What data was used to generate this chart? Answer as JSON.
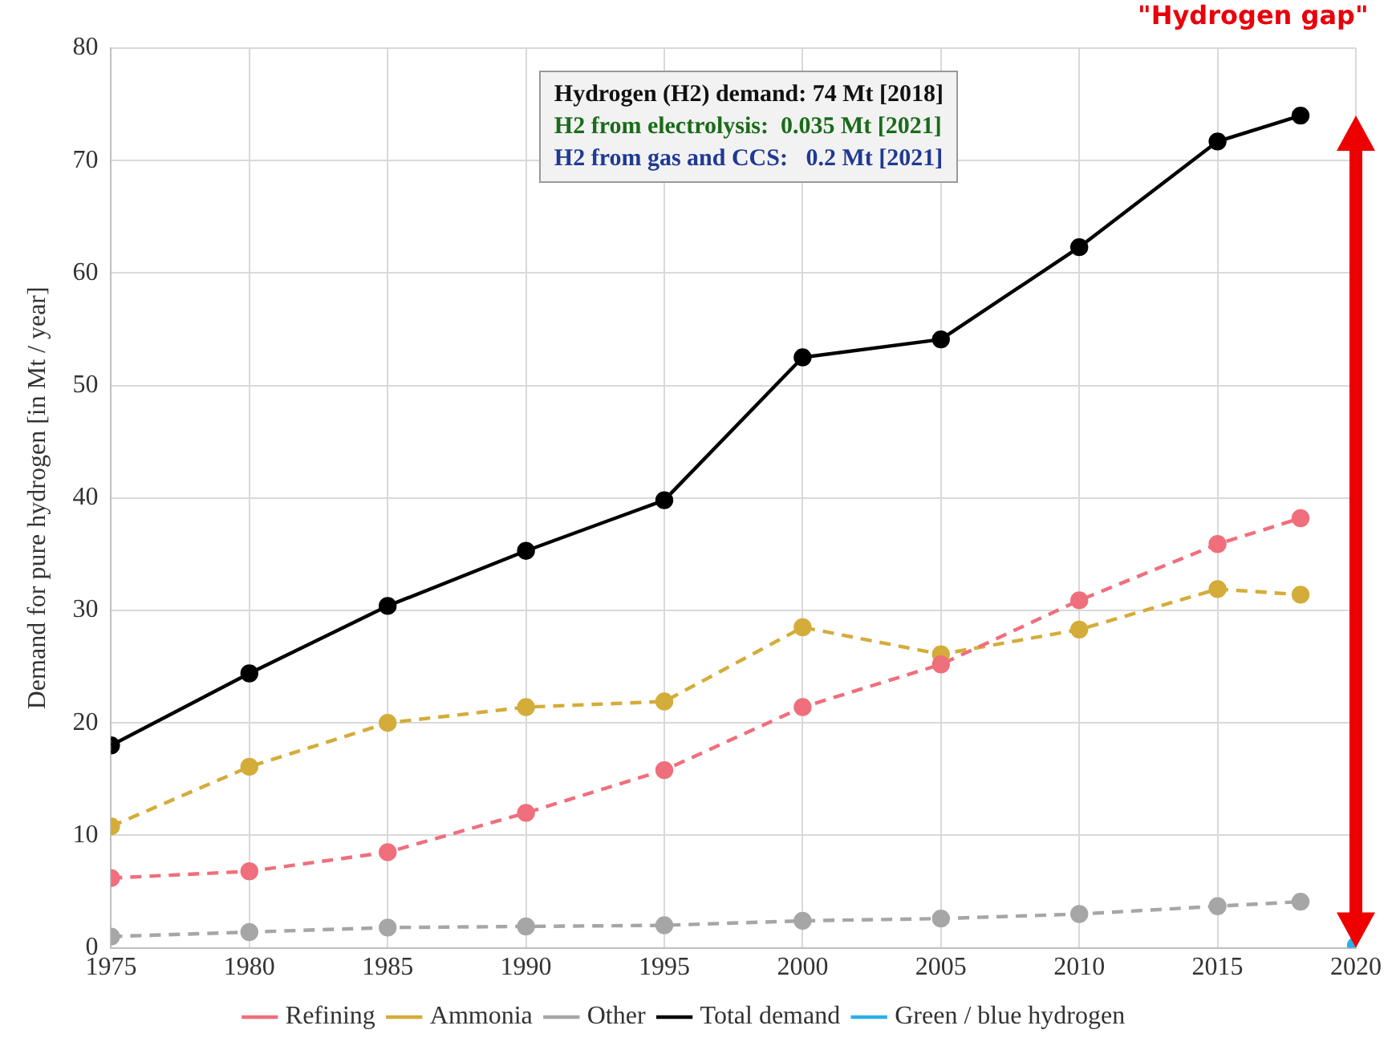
{
  "chart_data": {
    "type": "line",
    "ylabel": "Demand for pure hydrogen [in Mt / year]",
    "x": [
      1975,
      1980,
      1985,
      1990,
      1995,
      2000,
      2005,
      2010,
      2015,
      2018
    ],
    "series": [
      {
        "name": "Refining",
        "color": "#ef6f7c",
        "line_style": "dashed",
        "values": [
          6.2,
          6.8,
          8.5,
          12,
          15.8,
          21.4,
          25.2,
          30.9,
          35.9,
          38.2
        ]
      },
      {
        "name": "Ammonia",
        "color": "#d4ac3a",
        "line_style": "dashed",
        "values": [
          10.8,
          16.1,
          20,
          21.4,
          21.9,
          28.5,
          26.1,
          28.3,
          31.9,
          31.4
        ]
      },
      {
        "name": "Other",
        "color": "#a6a6a6",
        "line_style": "dashed",
        "values": [
          1,
          1.4,
          1.8,
          1.9,
          2,
          2.4,
          2.6,
          3,
          3.7,
          4.1
        ]
      },
      {
        "name": "Total demand",
        "color": "#000000",
        "line_style": "solid",
        "values": [
          18,
          24.4,
          30.4,
          35.3,
          39.8,
          52.5,
          54.1,
          62.3,
          71.7,
          74
        ]
      },
      {
        "name": "Green / blue hydrogen",
        "color": "#2eaee8",
        "line_style": "solid",
        "x": [
          2020
        ],
        "values": [
          0.2
        ]
      }
    ],
    "xlim": [
      1975,
      2020
    ],
    "xticks": [
      1975,
      1980,
      1985,
      1990,
      1995,
      2000,
      2005,
      2010,
      2015,
      2020
    ],
    "ylim": [
      0,
      80
    ],
    "yticks": [
      0,
      10,
      20,
      30,
      40,
      50,
      60,
      70,
      80
    ],
    "grid": true,
    "legend": "bottom",
    "marker": "circle",
    "annotations": [
      "Hydrogen (H2) demand: 74 Mt [2018]",
      "H2 from electrolysis:  0.035 Mt [2021]",
      "H2 from gas and CCS:   0.2 Mt [2021]",
      "\"Hydrogen gap\""
    ]
  }
}
